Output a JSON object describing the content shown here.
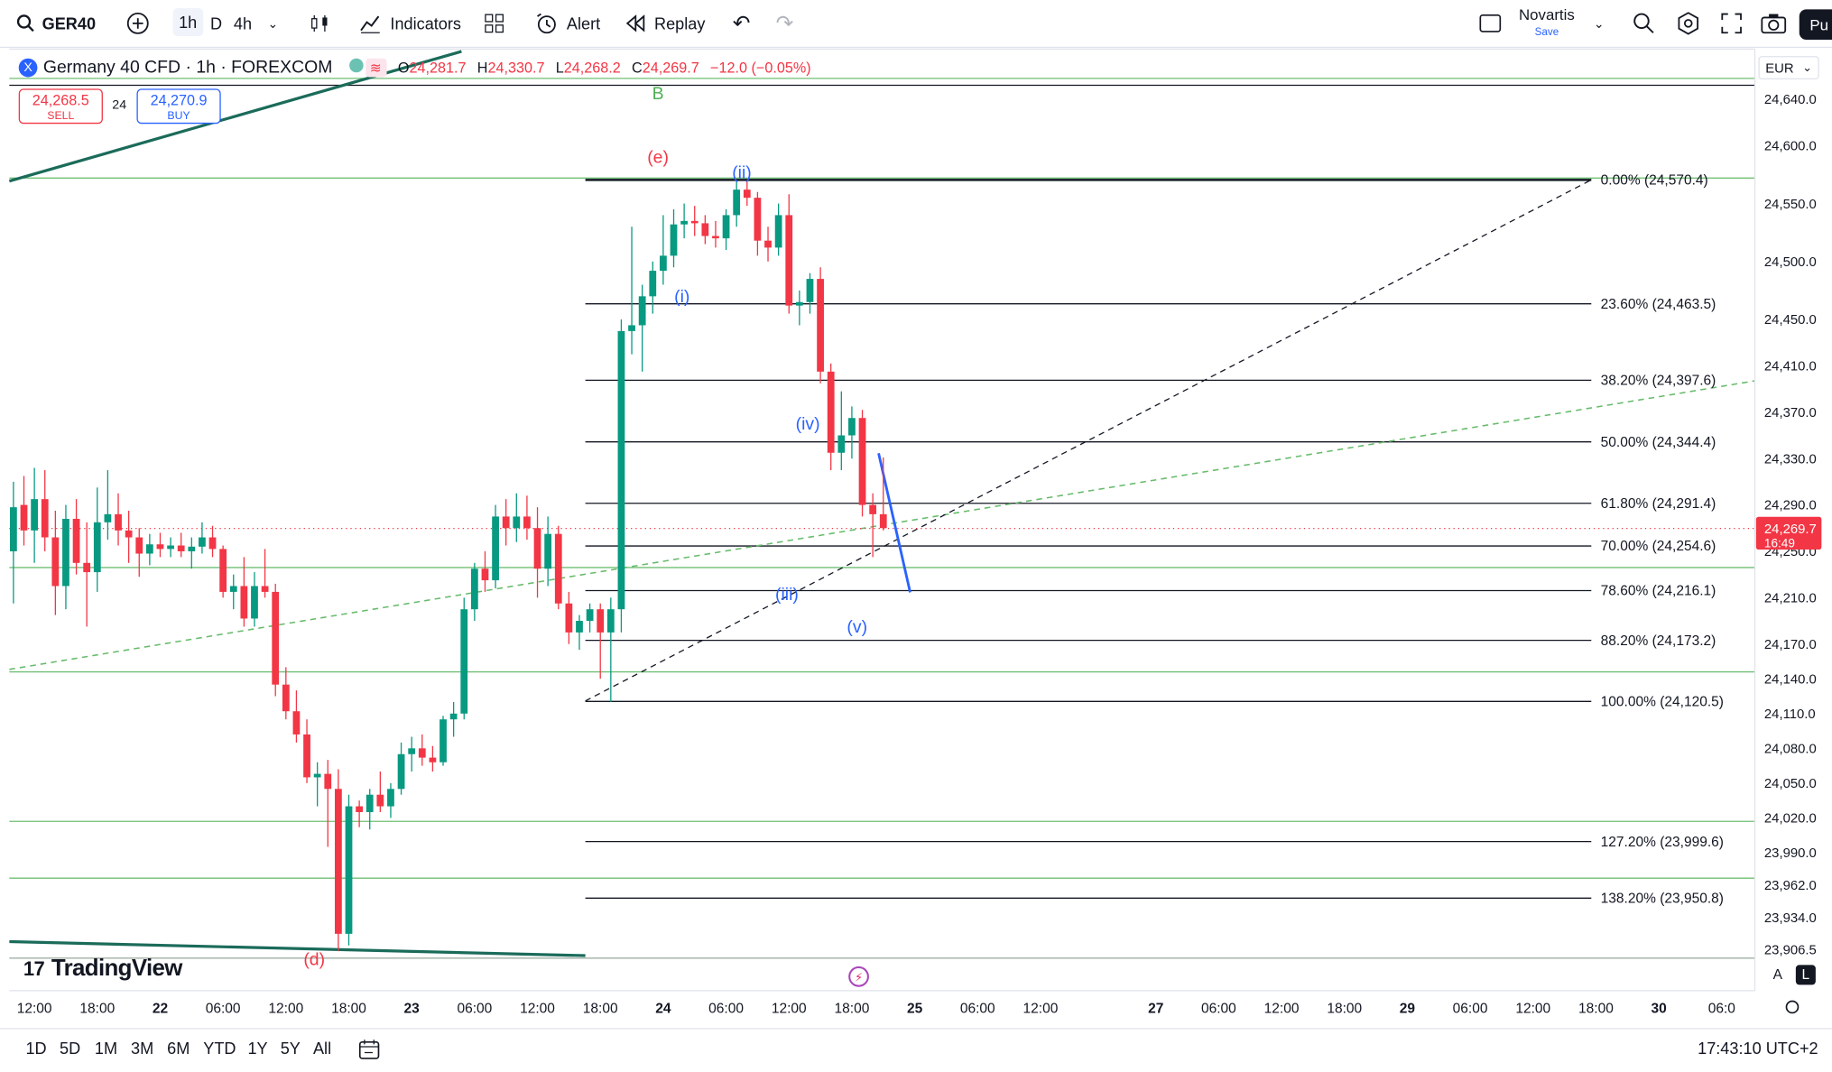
{
  "toolbar": {
    "symbol": "GER40",
    "intervals": [
      "1h",
      "D",
      "4h"
    ],
    "indicators_label": "Indicators",
    "alert_label": "Alert",
    "replay_label": "Replay",
    "layout_name": "Novartis",
    "save_label": "Save",
    "publish_label": "Pu"
  },
  "legend": {
    "title": "Germany 40 CFD · 1h · FOREXCOM",
    "logo_text": "X",
    "ohlc": [
      {
        "k": "O",
        "v": "24,281.7"
      },
      {
        "k": "H",
        "v": "24,330.7"
      },
      {
        "k": "L",
        "v": "24,268.2"
      },
      {
        "k": "C",
        "v": "24,269.7"
      }
    ],
    "change": "−12.0 (−0.05%)"
  },
  "trade": {
    "sell_price": "24,268.5",
    "sell_label": "SELL",
    "spread": "24",
    "buy_price": "24,270.9",
    "buy_label": "BUY"
  },
  "price_axis": {
    "currency": "EUR"
  },
  "bottom": {
    "ranges": [
      "1D",
      "5D",
      "1M",
      "3M",
      "6M",
      "YTD",
      "1Y",
      "5Y",
      "All"
    ],
    "clock": "17:43:10 UTC+2"
  },
  "branding": {
    "logo_text": "TradingView"
  },
  "colors": {
    "up": "#089981",
    "down": "#f23645",
    "wave": "#2962ff",
    "green_line": "#4caf50"
  },
  "chart_data": {
    "type": "candlestick",
    "symbol": "GER40",
    "interval": "1h",
    "y_ticks": [
      24640,
      24600,
      24550,
      24500,
      24450,
      24410,
      24370,
      24330,
      24290,
      24250,
      24210,
      24170,
      24140,
      24110,
      24080,
      24050,
      24020,
      23990,
      23962,
      23934,
      23906.5
    ],
    "x_ticks": [
      {
        "slot": 2,
        "label": "12:00",
        "bold": false
      },
      {
        "slot": 8,
        "label": "18:00",
        "bold": false
      },
      {
        "slot": 14,
        "label": "22",
        "bold": true
      },
      {
        "slot": 20,
        "label": "06:00",
        "bold": false
      },
      {
        "slot": 26,
        "label": "12:00",
        "bold": false
      },
      {
        "slot": 32,
        "label": "18:00",
        "bold": false
      },
      {
        "slot": 38,
        "label": "23",
        "bold": true
      },
      {
        "slot": 44,
        "label": "06:00",
        "bold": false
      },
      {
        "slot": 50,
        "label": "12:00",
        "bold": false
      },
      {
        "slot": 56,
        "label": "18:00",
        "bold": false
      },
      {
        "slot": 62,
        "label": "24",
        "bold": true
      },
      {
        "slot": 68,
        "label": "06:00",
        "bold": false
      },
      {
        "slot": 74,
        "label": "12:00",
        "bold": false
      },
      {
        "slot": 80,
        "label": "18:00",
        "bold": false
      },
      {
        "slot": 86,
        "label": "25",
        "bold": true
      },
      {
        "slot": 92,
        "label": "06:00",
        "bold": false
      },
      {
        "slot": 98,
        "label": "12:00",
        "bold": false
      },
      {
        "slot": 109,
        "label": "27",
        "bold": true
      },
      {
        "slot": 115,
        "label": "06:00",
        "bold": false
      },
      {
        "slot": 121,
        "label": "12:00",
        "bold": false
      },
      {
        "slot": 127,
        "label": "18:00",
        "bold": false
      },
      {
        "slot": 133,
        "label": "29",
        "bold": true
      },
      {
        "slot": 139,
        "label": "06:00",
        "bold": false
      },
      {
        "slot": 145,
        "label": "12:00",
        "bold": false
      },
      {
        "slot": 151,
        "label": "18:00",
        "bold": false
      },
      {
        "slot": 157,
        "label": "30",
        "bold": true
      },
      {
        "slot": 163,
        "label": "06:0",
        "bold": false
      }
    ],
    "candles": [
      {
        "o": 24250,
        "h": 24310,
        "l": 24205,
        "c": 24288
      },
      {
        "o": 24290,
        "h": 24315,
        "l": 24255,
        "c": 24268
      },
      {
        "o": 24268,
        "h": 24322,
        "l": 24240,
        "c": 24295
      },
      {
        "o": 24295,
        "h": 24320,
        "l": 24250,
        "c": 24262
      },
      {
        "o": 24262,
        "h": 24285,
        "l": 24195,
        "c": 24220
      },
      {
        "o": 24220,
        "h": 24290,
        "l": 24200,
        "c": 24278
      },
      {
        "o": 24278,
        "h": 24295,
        "l": 24230,
        "c": 24240
      },
      {
        "o": 24240,
        "h": 24275,
        "l": 24185,
        "c": 24232
      },
      {
        "o": 24232,
        "h": 24305,
        "l": 24215,
        "c": 24275
      },
      {
        "o": 24275,
        "h": 24320,
        "l": 24260,
        "c": 24282
      },
      {
        "o": 24282,
        "h": 24300,
        "l": 24255,
        "c": 24268
      },
      {
        "o": 24268,
        "h": 24285,
        "l": 24240,
        "c": 24262
      },
      {
        "o": 24262,
        "h": 24270,
        "l": 24228,
        "c": 24248
      },
      {
        "o": 24248,
        "h": 24265,
        "l": 24238,
        "c": 24256
      },
      {
        "o": 24256,
        "h": 24266,
        "l": 24245,
        "c": 24252
      },
      {
        "o": 24252,
        "h": 24262,
        "l": 24245,
        "c": 24255
      },
      {
        "o": 24255,
        "h": 24266,
        "l": 24245,
        "c": 24250
      },
      {
        "o": 24250,
        "h": 24262,
        "l": 24235,
        "c": 24254
      },
      {
        "o": 24254,
        "h": 24275,
        "l": 24248,
        "c": 24262
      },
      {
        "o": 24262,
        "h": 24272,
        "l": 24245,
        "c": 24252
      },
      {
        "o": 24252,
        "h": 24255,
        "l": 24210,
        "c": 24215
      },
      {
        "o": 24215,
        "h": 24230,
        "l": 24200,
        "c": 24220
      },
      {
        "o": 24220,
        "h": 24245,
        "l": 24185,
        "c": 24192
      },
      {
        "o": 24192,
        "h": 24232,
        "l": 24185,
        "c": 24220
      },
      {
        "o": 24220,
        "h": 24252,
        "l": 24210,
        "c": 24215
      },
      {
        "o": 24215,
        "h": 24222,
        "l": 24125,
        "c": 24135
      },
      {
        "o": 24135,
        "h": 24150,
        "l": 24105,
        "c": 24112
      },
      {
        "o": 24112,
        "h": 24130,
        "l": 24085,
        "c": 24092
      },
      {
        "o": 24092,
        "h": 24105,
        "l": 24050,
        "c": 24055
      },
      {
        "o": 24055,
        "h": 24068,
        "l": 24030,
        "c": 24058
      },
      {
        "o": 24058,
        "h": 24070,
        "l": 23995,
        "c": 24045
      },
      {
        "o": 24045,
        "h": 24062,
        "l": 23905,
        "c": 23920
      },
      {
        "o": 23920,
        "h": 24040,
        "l": 23910,
        "c": 24030
      },
      {
        "o": 24030,
        "h": 24035,
        "l": 24012,
        "c": 24025
      },
      {
        "o": 24025,
        "h": 24045,
        "l": 24010,
        "c": 24040
      },
      {
        "o": 24040,
        "h": 24060,
        "l": 24025,
        "c": 24030
      },
      {
        "o": 24030,
        "h": 24050,
        "l": 24020,
        "c": 24045
      },
      {
        "o": 24045,
        "h": 24085,
        "l": 24040,
        "c": 24075
      },
      {
        "o": 24075,
        "h": 24090,
        "l": 24060,
        "c": 24080
      },
      {
        "o": 24080,
        "h": 24092,
        "l": 24065,
        "c": 24072
      },
      {
        "o": 24072,
        "h": 24082,
        "l": 24060,
        "c": 24068
      },
      {
        "o": 24068,
        "h": 24108,
        "l": 24065,
        "c": 24105
      },
      {
        "o": 24105,
        "h": 24120,
        "l": 24090,
        "c": 24110
      },
      {
        "o": 24110,
        "h": 24210,
        "l": 24105,
        "c": 24200
      },
      {
        "o": 24200,
        "h": 24240,
        "l": 24190,
        "c": 24235
      },
      {
        "o": 24235,
        "h": 24250,
        "l": 24215,
        "c": 24225
      },
      {
        "o": 24225,
        "h": 24290,
        "l": 24218,
        "c": 24280
      },
      {
        "o": 24280,
        "h": 24295,
        "l": 24255,
        "c": 24270
      },
      {
        "o": 24270,
        "h": 24300,
        "l": 24258,
        "c": 24280
      },
      {
        "o": 24280,
        "h": 24298,
        "l": 24260,
        "c": 24270
      },
      {
        "o": 24270,
        "h": 24288,
        "l": 24210,
        "c": 24235
      },
      {
        "o": 24235,
        "h": 24280,
        "l": 24220,
        "c": 24265
      },
      {
        "o": 24265,
        "h": 24272,
        "l": 24200,
        "c": 24205
      },
      {
        "o": 24205,
        "h": 24215,
        "l": 24170,
        "c": 24180
      },
      {
        "o": 24180,
        "h": 24195,
        "l": 24165,
        "c": 24190
      },
      {
        "o": 24190,
        "h": 24205,
        "l": 24180,
        "c": 24200
      },
      {
        "o": 24200,
        "h": 24205,
        "l": 24140,
        "c": 24180
      },
      {
        "o": 24180,
        "h": 24210,
        "l": 24120,
        "c": 24200
      },
      {
        "o": 24200,
        "h": 24450,
        "l": 24180,
        "c": 24440
      },
      {
        "o": 24440,
        "h": 24530,
        "l": 24420,
        "c": 24445
      },
      {
        "o": 24445,
        "h": 24480,
        "l": 24405,
        "c": 24470
      },
      {
        "o": 24470,
        "h": 24500,
        "l": 24455,
        "c": 24492
      },
      {
        "o": 24492,
        "h": 24540,
        "l": 24480,
        "c": 24505
      },
      {
        "o": 24505,
        "h": 24545,
        "l": 24495,
        "c": 24532
      },
      {
        "o": 24532,
        "h": 24550,
        "l": 24520,
        "c": 24535
      },
      {
        "o": 24535,
        "h": 24548,
        "l": 24522,
        "c": 24533
      },
      {
        "o": 24533,
        "h": 24540,
        "l": 24515,
        "c": 24522
      },
      {
        "o": 24522,
        "h": 24535,
        "l": 24512,
        "c": 24520
      },
      {
        "o": 24520,
        "h": 24545,
        "l": 24510,
        "c": 24540
      },
      {
        "o": 24540,
        "h": 24570,
        "l": 24530,
        "c": 24562
      },
      {
        "o": 24562,
        "h": 24570,
        "l": 24548,
        "c": 24555
      },
      {
        "o": 24555,
        "h": 24560,
        "l": 24505,
        "c": 24518
      },
      {
        "o": 24518,
        "h": 24530,
        "l": 24500,
        "c": 24512
      },
      {
        "o": 24512,
        "h": 24550,
        "l": 24505,
        "c": 24540
      },
      {
        "o": 24540,
        "h": 24558,
        "l": 24455,
        "c": 24462
      },
      {
        "o": 24462,
        "h": 24475,
        "l": 24445,
        "c": 24465
      },
      {
        "o": 24465,
        "h": 24490,
        "l": 24455,
        "c": 24485
      },
      {
        "o": 24485,
        "h": 24495,
        "l": 24395,
        "c": 24405
      },
      {
        "o": 24405,
        "h": 24412,
        "l": 24320,
        "c": 24335
      },
      {
        "o": 24335,
        "h": 24388,
        "l": 24320,
        "c": 24350
      },
      {
        "o": 24350,
        "h": 24375,
        "l": 24330,
        "c": 24365
      },
      {
        "o": 24365,
        "h": 24372,
        "l": 24280,
        "c": 24290
      },
      {
        "o": 24290,
        "h": 24300,
        "l": 24245,
        "c": 24282
      },
      {
        "o": 24282,
        "h": 24331,
        "l": 24268,
        "c": 24270
      }
    ],
    "last_price": "24,269.7",
    "countdown": "16:49",
    "fibonacci": [
      {
        "label": "0.00% (24,570.4)",
        "value": 24570.4
      },
      {
        "label": "23.60% (24,463.5)",
        "value": 24463.5
      },
      {
        "label": "38.20% (24,397.6)",
        "value": 24397.6
      },
      {
        "label": "50.00% (24,344.4)",
        "value": 24344.4
      },
      {
        "label": "61.80% (24,291.4)",
        "value": 24291.4
      },
      {
        "label": "70.00% (24,254.6)",
        "value": 24254.6
      },
      {
        "label": "78.60% (24,216.1)",
        "value": 24216.1
      },
      {
        "label": "88.20% (24,173.2)",
        "value": 24173.2
      },
      {
        "label": "100.00% (24,120.5)",
        "value": 24120.5
      },
      {
        "label": "127.20% (23,999.6)",
        "value": 23999.6
      },
      {
        "label": "138.20% (23,950.8)",
        "value": 23950.8
      }
    ],
    "horizontal_levels": [
      24658,
      24572,
      24236,
      24146,
      24017,
      23968,
      23899
    ],
    "wave_labels": [
      {
        "text": "B",
        "slot": 61.5,
        "value": 24640,
        "color": "#4caf50"
      },
      {
        "text": "(e)",
        "slot": 61.5,
        "value": 24585,
        "color": "#f23645"
      },
      {
        "text": "(ii)",
        "slot": 69.5,
        "value": 24572,
        "color": "#2962ff"
      },
      {
        "text": "(i)",
        "slot": 63.8,
        "value": 24465,
        "color": "#2962ff"
      },
      {
        "text": "(iv)",
        "slot": 75.8,
        "value": 24355,
        "color": "#2962ff"
      },
      {
        "text": "(iii)",
        "slot": 73.8,
        "value": 24208,
        "color": "#2962ff"
      },
      {
        "text": "(v)",
        "slot": 80.5,
        "value": 24180,
        "color": "#2962ff"
      },
      {
        "text": "(d)",
        "slot": 28.7,
        "value": 23893,
        "color": "#f23645"
      }
    ]
  }
}
